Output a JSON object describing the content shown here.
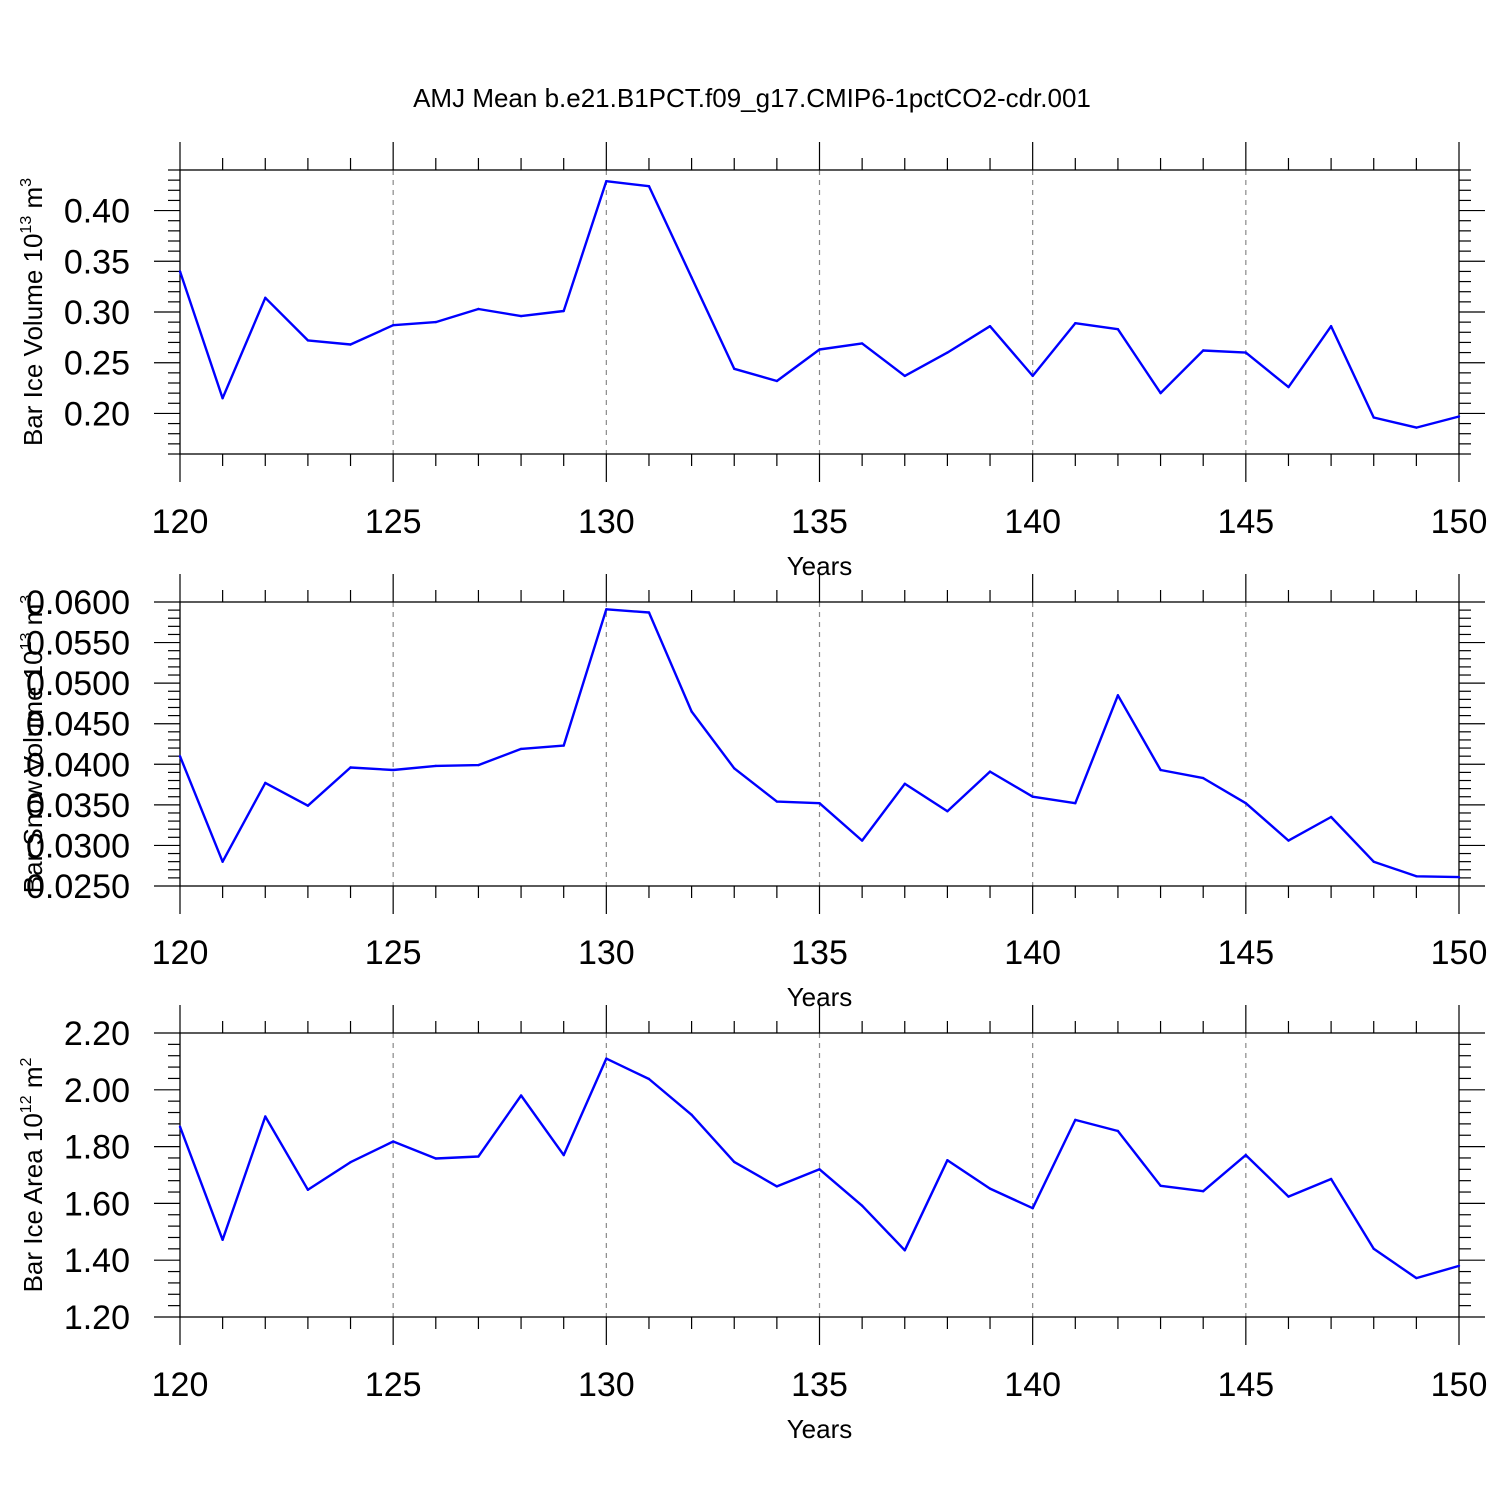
{
  "title": "AMJ Mean b.e21.B1PCT.f09_g17.CMIP6-1pctCO2-cdr.001",
  "colors": {
    "line": "#0000ff",
    "grid": "#888888",
    "axis": "#000000"
  },
  "chart_data": [
    {
      "type": "line",
      "xlabel": "Years",
      "ylabel": "Bar Ice Volume 10",
      "ylabel_sup": "13",
      "ylabel_unit": " m",
      "ylabel_unit_sup": "3",
      "xlim": [
        120,
        150
      ],
      "ylim": [
        0.16,
        0.44
      ],
      "xticks": [
        "120",
        "125",
        "130",
        "135",
        "140",
        "145",
        "150"
      ],
      "yticks": [
        "0.20",
        "0.25",
        "0.30",
        "0.35",
        "0.40"
      ],
      "x": [
        120,
        121,
        122,
        123,
        124,
        125,
        126,
        127,
        128,
        129,
        130,
        131,
        132,
        133,
        134,
        135,
        136,
        137,
        138,
        139,
        140,
        141,
        142,
        143,
        144,
        145,
        146,
        147,
        148,
        149,
        150
      ],
      "values": [
        0.34,
        0.215,
        0.314,
        0.272,
        0.268,
        0.287,
        0.29,
        0.303,
        0.296,
        0.301,
        0.429,
        0.424,
        0.334,
        0.244,
        0.232,
        0.263,
        0.269,
        0.237,
        0.26,
        0.286,
        0.237,
        0.289,
        0.283,
        0.22,
        0.262,
        0.26,
        0.226,
        0.286,
        0.196,
        0.186,
        0.197
      ]
    },
    {
      "type": "line",
      "xlabel": "Years",
      "ylabel": "Bar Snow Volume 10",
      "ylabel_sup": "13",
      "ylabel_unit": " m",
      "ylabel_unit_sup": "3",
      "xlim": [
        120,
        150
      ],
      "ylim": [
        0.025,
        0.06
      ],
      "xticks": [
        "120",
        "125",
        "130",
        "135",
        "140",
        "145",
        "150"
      ],
      "yticks": [
        "0.0250",
        "0.0300",
        "0.0350",
        "0.0400",
        "0.0450",
        "0.0500",
        "0.0550",
        "0.0600"
      ],
      "x": [
        120,
        121,
        122,
        123,
        124,
        125,
        126,
        127,
        128,
        129,
        130,
        131,
        132,
        133,
        134,
        135,
        136,
        137,
        138,
        139,
        140,
        141,
        142,
        143,
        144,
        145,
        146,
        147,
        148,
        149,
        150
      ],
      "values": [
        0.041,
        0.028,
        0.0377,
        0.0349,
        0.0396,
        0.0393,
        0.0398,
        0.0399,
        0.0419,
        0.0423,
        0.0591,
        0.0587,
        0.0465,
        0.0395,
        0.0354,
        0.0352,
        0.0306,
        0.0376,
        0.0342,
        0.0391,
        0.036,
        0.0352,
        0.0485,
        0.0393,
        0.0383,
        0.0352,
        0.0306,
        0.0335,
        0.028,
        0.0262,
        0.0261
      ]
    },
    {
      "type": "line",
      "xlabel": "Years",
      "ylabel": "Bar Ice Area 10",
      "ylabel_sup": "12",
      "ylabel_unit": " m",
      "ylabel_unit_sup": "2",
      "xlim": [
        120,
        150
      ],
      "ylim": [
        1.2,
        2.2
      ],
      "xticks": [
        "120",
        "125",
        "130",
        "135",
        "140",
        "145",
        "150"
      ],
      "yticks": [
        "1.20",
        "1.40",
        "1.60",
        "1.80",
        "2.00",
        "2.20"
      ],
      "x": [
        120,
        121,
        122,
        123,
        124,
        125,
        126,
        127,
        128,
        129,
        130,
        131,
        132,
        133,
        134,
        135,
        136,
        137,
        138,
        139,
        140,
        141,
        142,
        143,
        144,
        145,
        146,
        147,
        148,
        149,
        150
      ],
      "values": [
        1.87,
        1.472,
        1.906,
        1.648,
        1.745,
        1.818,
        1.758,
        1.765,
        1.98,
        1.77,
        2.11,
        2.038,
        1.912,
        1.746,
        1.66,
        1.72,
        1.592,
        1.435,
        1.752,
        1.652,
        1.583,
        1.894,
        1.855,
        1.662,
        1.643,
        1.77,
        1.624,
        1.686,
        1.44,
        1.337,
        1.38
      ]
    }
  ]
}
